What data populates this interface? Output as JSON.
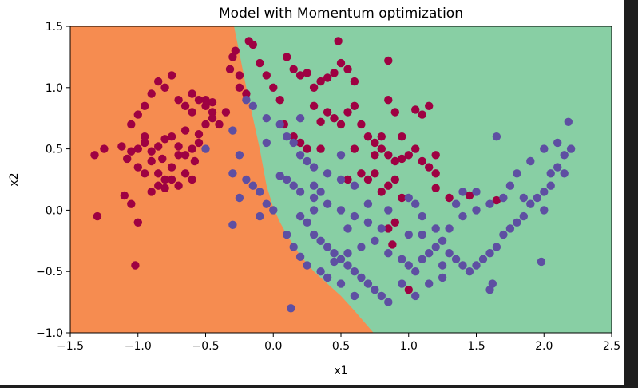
{
  "chart_data": {
    "type": "scatter",
    "title": "Model with Momentum optimization",
    "xlabel": "x1",
    "ylabel": "x2",
    "xlim": [
      -1.5,
      2.5
    ],
    "ylim": [
      -1.0,
      1.5
    ],
    "xticks": [
      -1.5,
      -1.0,
      -0.5,
      0.0,
      0.5,
      1.0,
      1.5,
      2.0,
      2.5
    ],
    "xtick_labels": [
      "−1.5",
      "−1.0",
      "−0.5",
      "0.0",
      "0.5",
      "1.0",
      "1.5",
      "2.0",
      "2.5"
    ],
    "yticks": [
      -1.0,
      -0.5,
      0.0,
      0.5,
      1.0,
      1.5
    ],
    "ytick_labels": [
      "−1.0",
      "−0.5",
      "0.0",
      "0.5",
      "1.0",
      "1.5"
    ],
    "grid": false,
    "legend": "none",
    "colors": {
      "region_class_0": "#f68c50",
      "region_class_1": "#88cfa4",
      "points_class_0": "#9e0142",
      "points_class_1": "#5e4fa2"
    },
    "decision_boundary": {
      "x": [
        -0.29,
        -0.2,
        -0.1,
        -0.05,
        0.0,
        0.05,
        0.1,
        0.2,
        0.3,
        0.4,
        0.5,
        0.6,
        0.74
      ],
      "y": [
        1.5,
        1.0,
        0.5,
        0.2,
        0.02,
        -0.1,
        -0.2,
        -0.37,
        -0.5,
        -0.6,
        -0.7,
        -0.82,
        -1.0
      ]
    },
    "series": [
      {
        "values": [
          [
            -1.32,
            0.45
          ],
          [
            -1.25,
            0.5
          ],
          [
            -1.12,
            0.52
          ],
          [
            -1.05,
            0.48
          ],
          [
            -1.0,
            0.5
          ],
          [
            -0.95,
            0.55
          ],
          [
            -0.9,
            0.48
          ],
          [
            -0.85,
            0.52
          ],
          [
            -0.8,
            0.58
          ],
          [
            -0.75,
            0.6
          ],
          [
            -0.7,
            0.52
          ],
          [
            -0.65,
            0.45
          ],
          [
            -0.6,
            0.5
          ],
          [
            -0.55,
            0.62
          ],
          [
            -0.5,
            0.7
          ],
          [
            -0.45,
            0.8
          ],
          [
            -1.05,
            0.7
          ],
          [
            -1.0,
            0.78
          ],
          [
            -0.95,
            0.85
          ],
          [
            -0.9,
            0.95
          ],
          [
            -0.85,
            1.05
          ],
          [
            -0.8,
            1.0
          ],
          [
            -0.75,
            1.1
          ],
          [
            -0.7,
            0.9
          ],
          [
            -0.65,
            0.85
          ],
          [
            -0.6,
            0.95
          ],
          [
            -0.55,
            0.9
          ],
          [
            -0.5,
            0.85
          ],
          [
            -0.45,
            0.75
          ],
          [
            -0.4,
            0.7
          ],
          [
            -1.08,
            0.42
          ],
          [
            -1.0,
            0.35
          ],
          [
            -0.95,
            0.3
          ],
          [
            -0.9,
            0.4
          ],
          [
            -0.85,
            0.3
          ],
          [
            -0.8,
            0.25
          ],
          [
            -0.75,
            0.35
          ],
          [
            -0.7,
            0.2
          ],
          [
            -0.65,
            0.3
          ],
          [
            -0.6,
            0.25
          ],
          [
            -1.1,
            0.12
          ],
          [
            -1.05,
            0.05
          ],
          [
            -0.9,
            0.15
          ],
          [
            -0.85,
            0.2
          ],
          [
            -0.8,
            0.18
          ],
          [
            -0.75,
            0.25
          ],
          [
            -0.7,
            0.45
          ],
          [
            -0.65,
            0.65
          ],
          [
            -0.55,
            0.55
          ],
          [
            -0.5,
            0.9
          ],
          [
            -0.45,
            0.88
          ],
          [
            -0.95,
            0.6
          ],
          [
            -1.0,
            -0.1
          ],
          [
            -1.3,
            -0.05
          ],
          [
            -1.02,
            -0.45
          ],
          [
            -0.58,
            0.4
          ],
          [
            -0.6,
            0.8
          ],
          [
            -0.82,
            0.42
          ],
          [
            -0.35,
            0.8
          ],
          [
            -0.28,
            1.3
          ],
          [
            -0.3,
            1.25
          ],
          [
            -0.32,
            1.15
          ],
          [
            -0.25,
            1.0
          ],
          [
            -0.2,
            0.95
          ],
          [
            -0.18,
            1.38
          ],
          [
            -0.15,
            1.35
          ],
          [
            -0.1,
            1.2
          ],
          [
            -0.05,
            1.1
          ],
          [
            0.0,
            1.0
          ],
          [
            0.05,
            0.9
          ],
          [
            0.08,
            0.7
          ],
          [
            0.1,
            1.25
          ],
          [
            0.15,
            1.15
          ],
          [
            0.2,
            1.1
          ],
          [
            0.25,
            1.12
          ],
          [
            0.3,
            1.0
          ],
          [
            0.35,
            1.05
          ],
          [
            0.4,
            1.08
          ],
          [
            0.45,
            1.12
          ],
          [
            0.5,
            1.2
          ],
          [
            0.55,
            1.15
          ],
          [
            0.6,
            1.05
          ],
          [
            0.48,
            1.38
          ],
          [
            0.3,
            0.85
          ],
          [
            0.35,
            0.72
          ],
          [
            0.4,
            0.8
          ],
          [
            0.45,
            0.75
          ],
          [
            0.5,
            0.7
          ],
          [
            0.55,
            0.8
          ],
          [
            0.6,
            0.85
          ],
          [
            0.65,
            0.7
          ],
          [
            0.7,
            0.6
          ],
          [
            0.75,
            0.55
          ],
          [
            0.8,
            0.5
          ],
          [
            0.85,
            0.45
          ],
          [
            0.9,
            0.4
          ],
          [
            0.95,
            0.42
          ],
          [
            1.0,
            0.45
          ],
          [
            1.05,
            0.5
          ],
          [
            1.1,
            0.4
          ],
          [
            1.15,
            0.35
          ],
          [
            1.2,
            0.3
          ],
          [
            0.8,
            0.15
          ],
          [
            0.85,
            0.2
          ],
          [
            0.9,
            0.25
          ],
          [
            0.95,
            0.1
          ],
          [
            0.7,
            0.25
          ],
          [
            0.75,
            0.3
          ],
          [
            0.8,
            0.6
          ],
          [
            0.85,
            0.9
          ],
          [
            0.9,
            0.8
          ],
          [
            0.95,
            0.6
          ],
          [
            0.65,
            0.3
          ],
          [
            0.6,
            0.5
          ],
          [
            1.05,
            0.82
          ],
          [
            1.1,
            0.78
          ],
          [
            1.15,
            0.85
          ],
          [
            1.2,
            0.45
          ],
          [
            1.3,
            0.1
          ],
          [
            1.45,
            0.12
          ],
          [
            1.65,
            0.08
          ],
          [
            1.2,
            0.18
          ],
          [
            0.9,
            -0.1
          ],
          [
            0.85,
            -0.15
          ],
          [
            0.88,
            -0.28
          ],
          [
            1.0,
            -0.65
          ],
          [
            0.25,
            0.5
          ],
          [
            0.35,
            0.5
          ],
          [
            0.75,
            0.45
          ],
          [
            0.85,
            1.22
          ],
          [
            0.55,
            0.25
          ],
          [
            0.15,
            0.6
          ],
          [
            0.2,
            0.55
          ],
          [
            -0.25,
            1.1
          ]
        ]
      },
      {
        "values": [
          [
            -0.5,
            0.5
          ],
          [
            -0.3,
            0.65
          ],
          [
            -0.25,
            0.45
          ],
          [
            -0.3,
            0.3
          ],
          [
            -0.2,
            0.25
          ],
          [
            -0.15,
            0.2
          ],
          [
            -0.1,
            0.15
          ],
          [
            -0.05,
            0.05
          ],
          [
            0.0,
            0.0
          ],
          [
            -0.25,
            0.1
          ],
          [
            -0.3,
            -0.12
          ],
          [
            -0.05,
            0.55
          ],
          [
            0.05,
            0.7
          ],
          [
            0.1,
            0.6
          ],
          [
            0.15,
            0.55
          ],
          [
            0.2,
            0.45
          ],
          [
            0.25,
            0.4
          ],
          [
            0.3,
            0.35
          ],
          [
            0.4,
            0.3
          ],
          [
            0.5,
            0.25
          ],
          [
            0.05,
            0.28
          ],
          [
            0.1,
            0.25
          ],
          [
            0.15,
            0.2
          ],
          [
            0.2,
            0.15
          ],
          [
            0.3,
            0.1
          ],
          [
            0.4,
            0.05
          ],
          [
            0.5,
            0.0
          ],
          [
            0.6,
            -0.05
          ],
          [
            0.7,
            -0.1
          ],
          [
            0.8,
            -0.15
          ],
          [
            0.2,
            -0.05
          ],
          [
            0.25,
            -0.1
          ],
          [
            0.3,
            -0.2
          ],
          [
            0.35,
            -0.25
          ],
          [
            0.4,
            -0.3
          ],
          [
            0.45,
            -0.35
          ],
          [
            0.5,
            -0.4
          ],
          [
            0.55,
            -0.45
          ],
          [
            0.6,
            -0.5
          ],
          [
            0.65,
            -0.55
          ],
          [
            0.7,
            -0.6
          ],
          [
            0.75,
            -0.65
          ],
          [
            0.8,
            -0.7
          ],
          [
            0.85,
            -0.75
          ],
          [
            0.1,
            -0.2
          ],
          [
            0.15,
            -0.3
          ],
          [
            0.2,
            -0.38
          ],
          [
            0.25,
            -0.45
          ],
          [
            0.35,
            -0.5
          ],
          [
            0.45,
            -0.42
          ],
          [
            0.55,
            -0.35
          ],
          [
            0.65,
            -0.3
          ],
          [
            0.75,
            -0.25
          ],
          [
            0.85,
            -0.35
          ],
          [
            0.95,
            -0.4
          ],
          [
            1.0,
            -0.45
          ],
          [
            1.05,
            -0.5
          ],
          [
            1.1,
            -0.4
          ],
          [
            1.15,
            -0.35
          ],
          [
            1.2,
            -0.3
          ],
          [
            1.25,
            -0.25
          ],
          [
            1.3,
            -0.35
          ],
          [
            1.35,
            -0.4
          ],
          [
            1.4,
            -0.45
          ],
          [
            1.45,
            -0.5
          ],
          [
            1.5,
            -0.45
          ],
          [
            1.55,
            -0.4
          ],
          [
            1.6,
            -0.35
          ],
          [
            1.65,
            -0.3
          ],
          [
            1.7,
            -0.2
          ],
          [
            1.75,
            -0.15
          ],
          [
            1.8,
            -0.1
          ],
          [
            1.85,
            -0.05
          ],
          [
            1.9,
            0.05
          ],
          [
            1.95,
            0.1
          ],
          [
            2.0,
            0.15
          ],
          [
            2.05,
            0.3
          ],
          [
            2.1,
            0.35
          ],
          [
            2.15,
            0.45
          ],
          [
            2.2,
            0.5
          ],
          [
            2.18,
            0.72
          ],
          [
            2.1,
            0.55
          ],
          [
            2.0,
            0.5
          ],
          [
            1.9,
            0.4
          ],
          [
            1.8,
            0.3
          ],
          [
            1.65,
            0.6
          ],
          [
            1.6,
            0.05
          ],
          [
            1.5,
            0.0
          ],
          [
            1.4,
            -0.05
          ],
          [
            1.35,
            0.05
          ],
          [
            1.3,
            -0.15
          ],
          [
            1.2,
            -0.15
          ],
          [
            1.1,
            -0.2
          ],
          [
            1.0,
            -0.2
          ],
          [
            0.95,
            -0.6
          ],
          [
            1.05,
            -0.7
          ],
          [
            1.15,
            -0.6
          ],
          [
            1.25,
            -0.55
          ],
          [
            1.6,
            -0.65
          ],
          [
            1.62,
            -0.6
          ],
          [
            1.98,
            -0.42
          ],
          [
            0.6,
            -0.7
          ],
          [
            0.5,
            -0.6
          ],
          [
            0.4,
            -0.55
          ],
          [
            0.13,
            -0.8
          ],
          [
            0.3,
            0.0
          ],
          [
            0.35,
            0.15
          ],
          [
            0.6,
            0.2
          ],
          [
            0.7,
            0.05
          ],
          [
            0.85,
            0.0
          ],
          [
            1.0,
            0.1
          ],
          [
            1.1,
            -0.05
          ],
          [
            1.5,
            0.15
          ],
          [
            1.7,
            0.1
          ],
          [
            1.85,
            0.1
          ],
          [
            2.0,
            0.0
          ],
          [
            2.05,
            0.2
          ],
          [
            2.15,
            0.3
          ],
          [
            0.2,
            0.75
          ],
          [
            -0.2,
            0.9
          ],
          [
            -0.15,
            0.85
          ],
          [
            -0.05,
            0.75
          ],
          [
            0.5,
            0.45
          ],
          [
            0.3,
            0.2
          ],
          [
            -0.1,
            -0.05
          ],
          [
            1.05,
            0.05
          ],
          [
            1.4,
            0.15
          ],
          [
            1.75,
            0.2
          ],
          [
            1.25,
            -0.45
          ],
          [
            0.55,
            -0.15
          ]
        ]
      }
    ]
  }
}
